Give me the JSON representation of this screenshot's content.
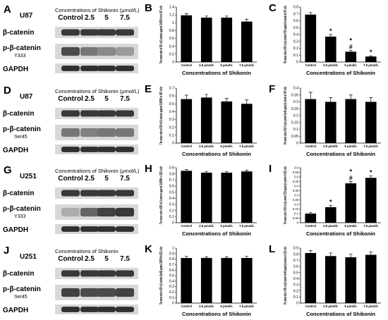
{
  "blot_panels": [
    {
      "letter": "A",
      "cell": "U87",
      "header": "Concentrations of Shikonin (μmol/L)",
      "lane_labels": [
        "Control",
        "2.5",
        "5",
        "7.5"
      ],
      "rows": [
        {
          "label": "β-catenin",
          "sublabel": ""
        },
        {
          "label": "p-β-catenin",
          "sublabel": "Y333"
        },
        {
          "label": "GAPDH",
          "sublabel": ""
        }
      ]
    },
    {
      "letter": "D",
      "cell": "U87",
      "header": "Concentrations of Shikonin (μmol/L)",
      "lane_labels": [
        "Control",
        "2.5",
        "5",
        "7.5"
      ],
      "rows": [
        {
          "label": "β-catenin",
          "sublabel": ""
        },
        {
          "label": "p-β-catenin",
          "sublabel": "Ser45"
        },
        {
          "label": "GAPDH",
          "sublabel": ""
        }
      ]
    },
    {
      "letter": "G",
      "cell": "U251",
      "header": "Concentrations of Shikonin (μmol/L)",
      "lane_labels": [
        "Control",
        "2.5",
        "5",
        "7.5"
      ],
      "rows": [
        {
          "label": "β-catenin",
          "sublabel": ""
        },
        {
          "label": "p-β-catenin",
          "sublabel": "Y333"
        },
        {
          "label": "GAPDH",
          "sublabel": ""
        }
      ]
    },
    {
      "letter": "J",
      "cell": "U251",
      "header": "Concentrations of Shikonin",
      "lane_labels": [
        "Control",
        "2.5",
        "5",
        "7.5"
      ],
      "rows": [
        {
          "label": "β-catenin",
          "sublabel": ""
        },
        {
          "label": "p-β-catenin",
          "sublabel": "Ser45"
        },
        {
          "label": "GAPDH",
          "sublabel": ""
        }
      ]
    }
  ],
  "chart_data": [
    {
      "letter": "B",
      "type": "bar",
      "categories": [
        "Control",
        "2.5 μmol/L",
        "5 μmol/L",
        "7.5 μmol/L"
      ],
      "values": [
        1.19,
        1.13,
        1.13,
        1.03
      ],
      "errors": [
        0.04,
        0.04,
        0.04,
        0.06
      ],
      "annotations": [
        "",
        "",
        "",
        ""
      ],
      "ylim": [
        0,
        1.4
      ],
      "yticks": [
        "0",
        "0.2",
        "0.4",
        "0.6",
        "0.8",
        "1",
        "1.2",
        "1.4"
      ],
      "ylabel": "The mean ratio of IDV of β-catenin against GAPDH in in U87 cells",
      "xlabel": "Concentrations of Shikonin"
    },
    {
      "letter": "C",
      "type": "bar",
      "categories": [
        "Control",
        "2.5 μmol/L",
        "5 μmol/L",
        "7.5 μmol/L"
      ],
      "values": [
        0.69,
        0.37,
        0.15,
        0.08
      ],
      "errors": [
        0.03,
        0.03,
        0.02,
        0.01
      ],
      "annotations": [
        "",
        "*",
        "*\n#",
        "*"
      ],
      "ylim": [
        0,
        0.8
      ],
      "yticks": [
        "0",
        "0.1",
        "0.2",
        "0.3",
        "0.4",
        "0.5",
        "0.6",
        "0.7",
        "0.8"
      ],
      "ylabel": "The mean ratio of IDV of p-β-catenin Y333 against β-catenin in U87 cells",
      "xlabel": "Concentrations of Shikonin"
    },
    {
      "letter": "E",
      "type": "bar",
      "categories": [
        "Control",
        "2.5 μmol/L",
        "5 μmol/L",
        "7.5 μmol/L"
      ],
      "values": [
        0.56,
        0.58,
        0.53,
        0.5
      ],
      "errors": [
        0.05,
        0.04,
        0.04,
        0.05
      ],
      "annotations": [
        "",
        "",
        "",
        ""
      ],
      "ylim": [
        0,
        0.7
      ],
      "yticks": [
        "0",
        "0.1",
        "0.2",
        "0.3",
        "0.4",
        "0.5",
        "0.6",
        "0.7"
      ],
      "ylabel": "The mean ratio of IDV of β-catenin against GAPDH in U87 cells",
      "xlabel": "Concentrations of Shikonin"
    },
    {
      "letter": "F",
      "type": "bar",
      "categories": [
        "Control",
        "2.5 μmol/L",
        "5 μmol/L",
        "7.5 μmol/L"
      ],
      "values": [
        0.32,
        0.3,
        0.32,
        0.3
      ],
      "errors": [
        0.05,
        0.03,
        0.03,
        0.03
      ],
      "annotations": [
        "",
        "",
        "",
        ""
      ],
      "ylim": [
        0,
        0.4
      ],
      "yticks": [
        "0",
        "0.05",
        "0.1",
        "0.15",
        "0.2",
        "0.25",
        "0.3",
        "0.35",
        "0.4"
      ],
      "ylabel": "The mean ratio of IDV of p-β-catenin Ser45 against β-catenin in U87 cells",
      "xlabel": "Concentrations of Shikonin"
    },
    {
      "letter": "H",
      "type": "bar",
      "categories": [
        "Control",
        "2.5 μmol/L",
        "5 μmol/L",
        "7.5 μmol/L"
      ],
      "values": [
        0.85,
        0.82,
        0.82,
        0.84
      ],
      "errors": [
        0.02,
        0.02,
        0.02,
        0.02
      ],
      "annotations": [
        "",
        "",
        "",
        ""
      ],
      "ylim": [
        0,
        0.9
      ],
      "yticks": [
        "0",
        "0.1",
        "0.2",
        "0.3",
        "0.4",
        "0.5",
        "0.6",
        "0.7",
        "0.8",
        "0.9"
      ],
      "ylabel": "The mean ratio of IDV of β-catenin against GAPDH in U251 cells",
      "xlabel": "Concentrations of Shikonin"
    },
    {
      "letter": "I",
      "type": "bar",
      "categories": [
        "Control",
        "2.5 μmol/L",
        "5 μmol/L",
        "7.5 μmol/L"
      ],
      "values": [
        0.1,
        0.17,
        0.43,
        0.49
      ],
      "errors": [
        0.01,
        0.02,
        0.02,
        0.02
      ],
      "annotations": [
        "",
        "*",
        "*\n#",
        "*"
      ],
      "ylim": [
        0,
        0.6
      ],
      "yticks": [
        "0",
        "0.05",
        "0.1",
        "0.15",
        "0.2",
        "0.25",
        "0.3",
        "0.35",
        "0.4",
        "0.45",
        "0.5",
        "0.55",
        "0.6"
      ],
      "ylabel": "The mean ratio of IDV of p-β-catenin Y333 against β-catenin in U251 cells",
      "xlabel": "Concentrations of Shikonin"
    },
    {
      "letter": "K",
      "type": "bar",
      "categories": [
        "Control",
        "2.5 μmol/L",
        "5 μmol/L",
        "7.5 μmol/L"
      ],
      "values": [
        0.82,
        0.82,
        0.82,
        0.82
      ],
      "errors": [
        0.03,
        0.02,
        0.02,
        0.03
      ],
      "annotations": [
        "",
        "",
        "",
        ""
      ],
      "ylim": [
        0,
        1
      ],
      "yticks": [
        "0",
        "0.1",
        "0.2",
        "0.3",
        "0.4",
        "0.5",
        "0.6",
        "0.7",
        "0.8",
        "0.9",
        "1"
      ],
      "ylabel": "The mean ratio of IDV of β-catenin (Ser45) against GAPDH in U251 cells",
      "xlabel": "Concentrations of Shikonin"
    },
    {
      "letter": "L",
      "type": "bar",
      "categories": [
        "Control",
        "2.5 μmol/L",
        "5 μmol/L",
        "7.5 μmol/L"
      ],
      "values": [
        0.82,
        0.77,
        0.75,
        0.79
      ],
      "errors": [
        0.04,
        0.05,
        0.05,
        0.05
      ],
      "annotations": [
        "",
        "",
        "",
        ""
      ],
      "ylim": [
        0,
        0.9
      ],
      "yticks": [
        "0",
        "0.1",
        "0.2",
        "0.3",
        "0.4",
        "0.5",
        "0.6",
        "0.7",
        "0.8",
        "0.9"
      ],
      "ylabel": "The mean ratio of IDV of p-β-catenin Ser45 against β-catenin in U251 cells",
      "xlabel": "Concentrations of Shikonin"
    }
  ]
}
